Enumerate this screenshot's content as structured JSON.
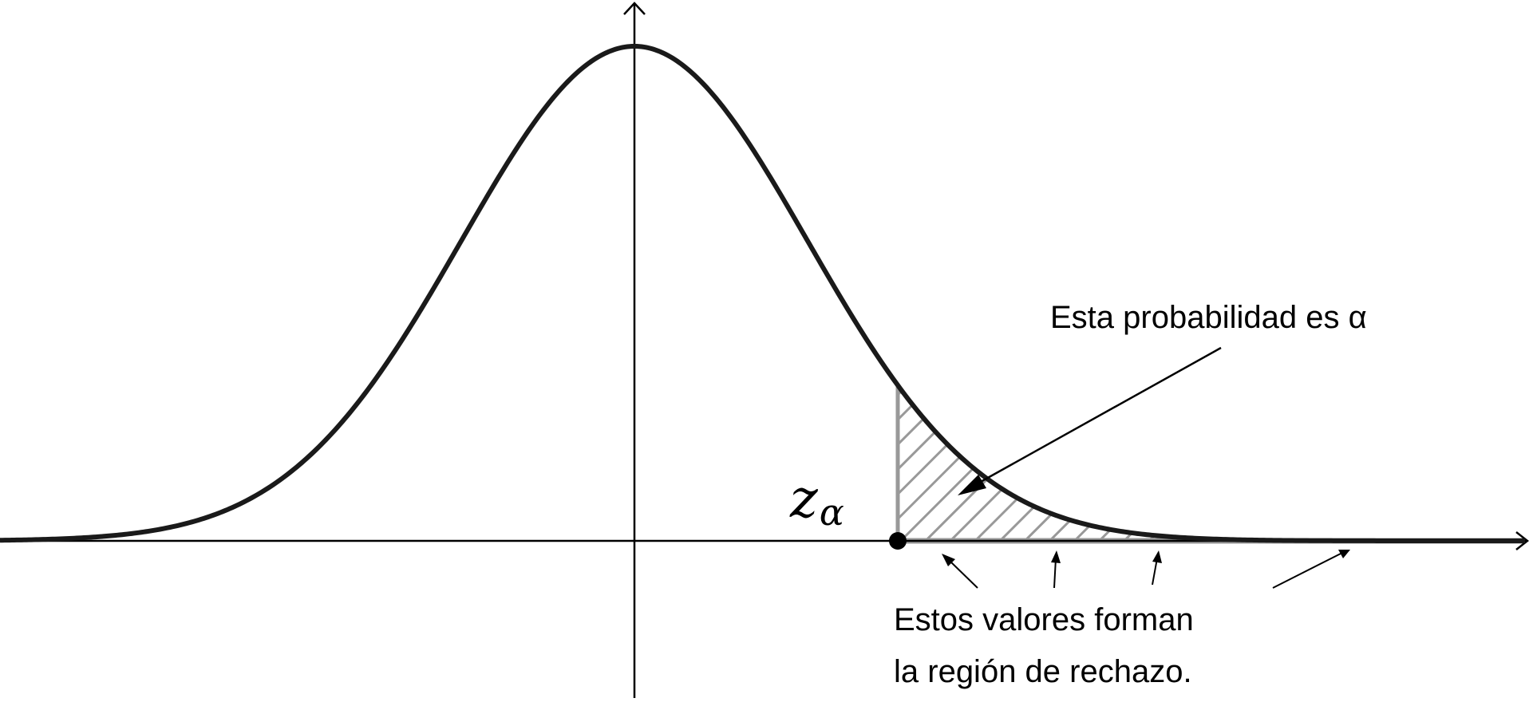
{
  "diagram": {
    "critical_value_label": {
      "main": "z",
      "subscript": "α"
    },
    "probability_annotation": "Esta probabilidad es α",
    "region_annotation": {
      "line1": "Estos valores forman",
      "line2": "la región de rechazo."
    },
    "colors": {
      "curve": "#1a1a1a",
      "axis": "#000000",
      "hatch": "#999999",
      "point": "#000000"
    }
  }
}
